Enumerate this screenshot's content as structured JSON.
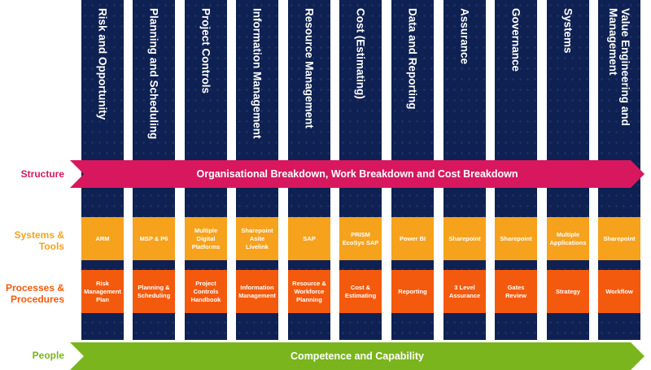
{
  "row_labels": {
    "structure": "Structure",
    "systems_tools": "Systems & Tools",
    "processes_procedures": "Processes & Procedures",
    "people": "People"
  },
  "bands": {
    "structure": "Organisational Breakdown, Work Breakdown and Cost Breakdown",
    "people": "Competence and Capability"
  },
  "colors": {
    "column": "#0e2152",
    "structure": "#d7185e",
    "systems_tools": "#f6a21c",
    "processes_procedures": "#f45a0d",
    "people": "#7ab51d"
  },
  "columns": [
    {
      "title": "Risk and Opportunity",
      "system": "ARM",
      "process": "Risk Management Plan"
    },
    {
      "title": "Planning and Scheduling",
      "system": "MSP & P6",
      "process": "Planning & Scheduling"
    },
    {
      "title": "Project Controls",
      "system": "Multiple Digital Platforms",
      "process": "Project Controls Handbook"
    },
    {
      "title": "Information Management",
      "system": "Sharepoint Asite Livelink",
      "process": "Information Management"
    },
    {
      "title": "Resource Management",
      "system": "SAP",
      "process": "Resource & Workforce Planning"
    },
    {
      "title": "Cost (Estimating)",
      "system": "PRISM EcoSys SAP",
      "process": "Cost & Estimating"
    },
    {
      "title": "Data and Reporting",
      "system": "Power BI",
      "process": "Reporting"
    },
    {
      "title": "Assurance",
      "system": "Sharepoint",
      "process": "3 Level Assurance"
    },
    {
      "title": "Governance",
      "system": "Sharepoint",
      "process": "Gates Review"
    },
    {
      "title": "Systems",
      "system": "Multiple Applications",
      "process": "Strategy"
    },
    {
      "title": "Value Engineering and Management",
      "system": "Sharepoint",
      "process": "Workflow"
    }
  ]
}
